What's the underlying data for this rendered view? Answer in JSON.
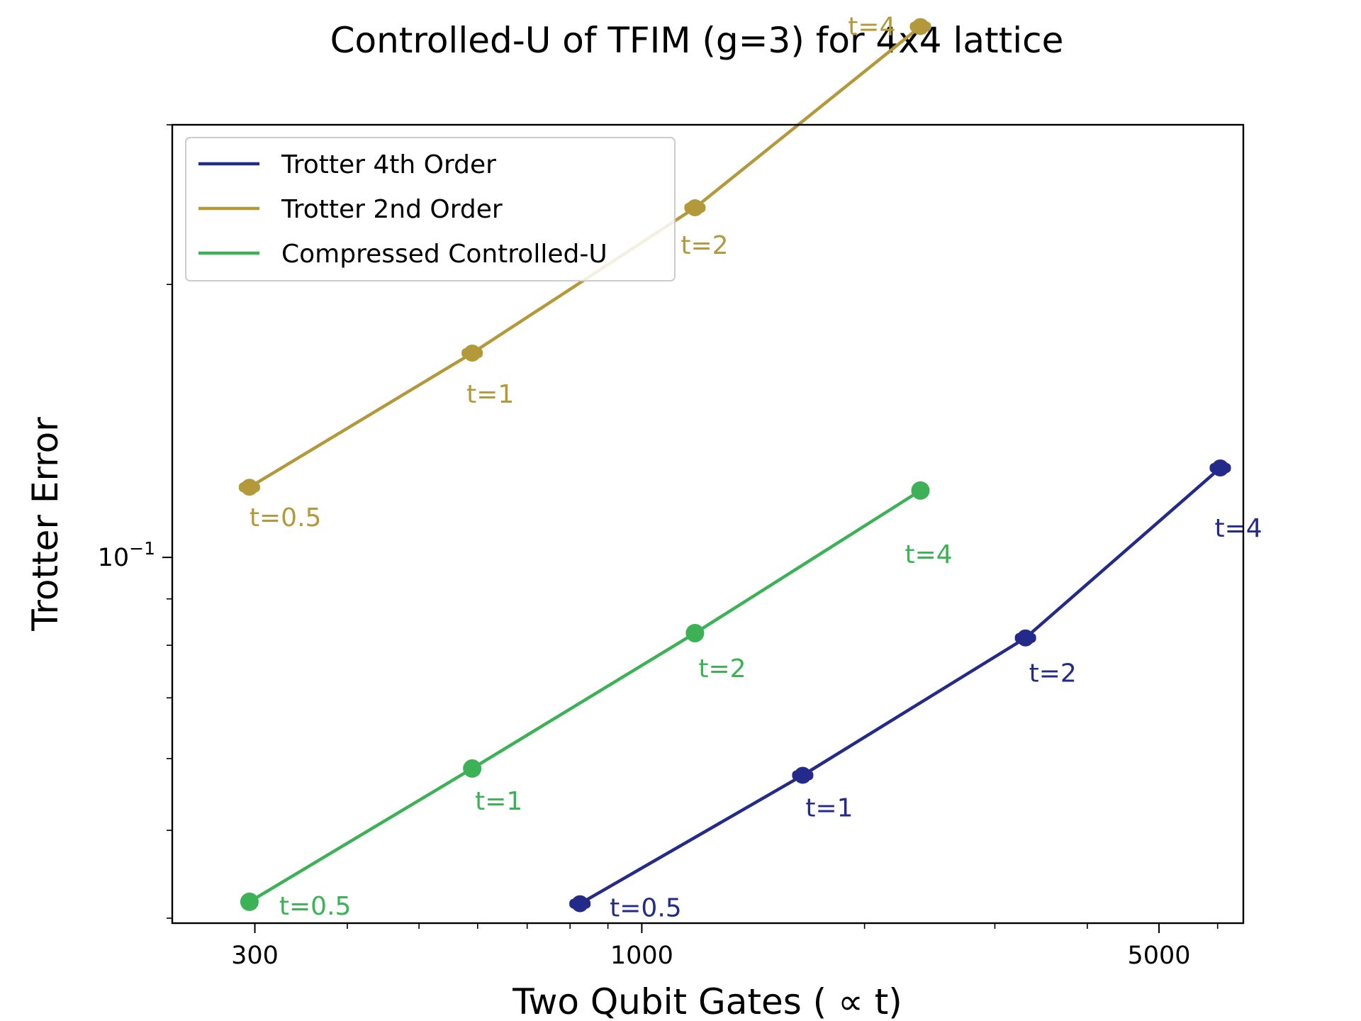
{
  "chart_data": {
    "type": "line",
    "title": "Controlled-U of TFIM (g=3) for 4x4 lattice",
    "xlabel": "Two Qubit Gates ( ∝  t)",
    "ylabel": "Trotter Error",
    "xscale": "log",
    "yscale": "log",
    "xlim": [
      232,
      6500
    ],
    "ylim": [
      0.0395,
      0.3
    ],
    "xticks": [
      {
        "value": 300,
        "label": "300"
      },
      {
        "value": 1000,
        "label": "1000"
      },
      {
        "value": 5000,
        "label": "5000"
      }
    ],
    "yticks": [
      {
        "value": 0.1,
        "base": "10",
        "exp": "−1"
      }
    ],
    "grid": false,
    "legend_position": "top-left",
    "series": [
      {
        "name": "Trotter 4th Order",
        "color": "#232a8a",
        "marker": "thick-dot",
        "points": [
          {
            "x": 825,
            "y": 0.0415,
            "label": "t=0.5"
          },
          {
            "x": 1650,
            "y": 0.0575,
            "label": "t=1"
          },
          {
            "x": 3300,
            "y": 0.0815,
            "label": "t=2"
          },
          {
            "x": 6050,
            "y": 0.1255,
            "label": "t=4"
          }
        ]
      },
      {
        "name": "Trotter 2nd Order",
        "color": "#b3993a",
        "marker": "thick-dot",
        "points": [
          {
            "x": 295,
            "y": 0.1195,
            "label": "t=0.5"
          },
          {
            "x": 590,
            "y": 0.168,
            "label": "t=1"
          },
          {
            "x": 1180,
            "y": 0.243,
            "label": "t=2"
          },
          {
            "x": 2380,
            "y": 0.385,
            "label": "t=4"
          }
        ]
      },
      {
        "name": "Compressed Controlled-U",
        "color": "#3cb156",
        "marker": "dot",
        "points": [
          {
            "x": 295,
            "y": 0.0417,
            "label": "t=0.5"
          },
          {
            "x": 590,
            "y": 0.0585,
            "label": "t=1"
          },
          {
            "x": 1180,
            "y": 0.0825,
            "label": "t=2"
          },
          {
            "x": 2380,
            "y": 0.1185,
            "label": "t=4"
          }
        ]
      }
    ]
  }
}
